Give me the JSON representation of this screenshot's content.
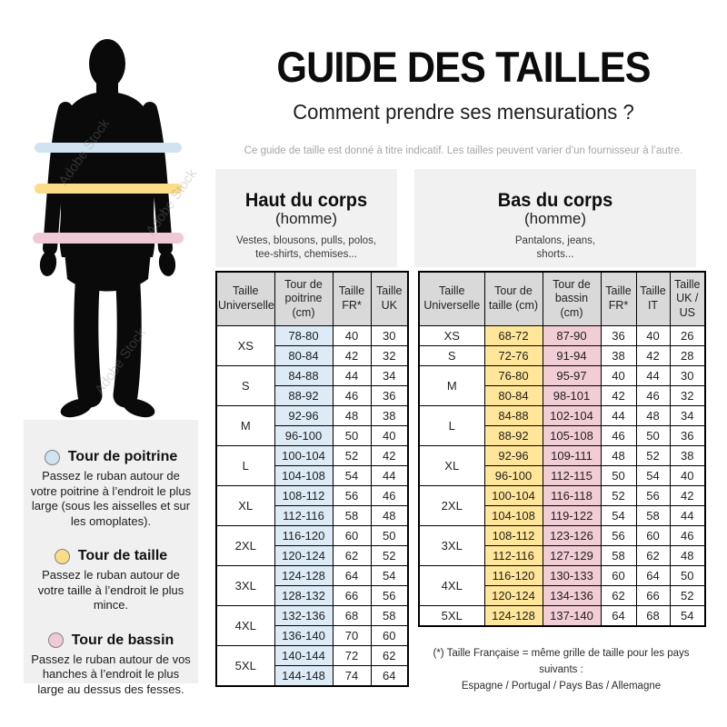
{
  "header": {
    "title": "GUIDE DES TAILLES",
    "subtitle": "Comment prendre ses mensurations ?",
    "disclaimer": "Ce guide de taille est donné à titre indicatif. Les tailles peuvent varier d’un fournisseur à l’autre."
  },
  "watermark": "Adobe Stock",
  "figure": {
    "bands": [
      {
        "name": "tour-de-poitrine",
        "color": "#cfe3f0"
      },
      {
        "name": "tour-de-taille",
        "color": "#fadd85"
      },
      {
        "name": "tour-de-bassin",
        "color": "#f0c9d6"
      }
    ]
  },
  "legend": {
    "items": [
      {
        "label": "Tour de poitrine",
        "color": "#cfe3f0",
        "text": "Passez le ruban autour de votre poitrine à l’endroit le plus large (sous les aisselles et sur les omoplates)."
      },
      {
        "label": "Tour de taille",
        "color": "#fadd85",
        "text": "Passez le ruban autour de votre taille à l’endroit le plus mince."
      },
      {
        "label": "Tour de bassin",
        "color": "#f0c9d6",
        "text": "Passez le ruban autour de vos hanches à l’endroit le plus large au dessus des fesses."
      }
    ]
  },
  "upper_table": {
    "intro": {
      "title": "Haut du corps",
      "subtitle": "(homme)",
      "line1": "Vestes, blousons, pulls, polos,",
      "line2": "tee-shirts, chemises..."
    },
    "columns": [
      "Taille Universelle",
      "Tour de poitrine (cm)",
      "Taille FR*",
      "Taille UK"
    ],
    "col_colors": [
      "#DDEBF7",
      null,
      null
    ],
    "sizes": [
      {
        "size": "XS",
        "rows": [
          [
            "78-80",
            "40",
            "30"
          ],
          [
            "80-84",
            "42",
            "32"
          ]
        ]
      },
      {
        "size": "S",
        "rows": [
          [
            "84-88",
            "44",
            "34"
          ],
          [
            "88-92",
            "46",
            "36"
          ]
        ]
      },
      {
        "size": "M",
        "rows": [
          [
            "92-96",
            "48",
            "38"
          ],
          [
            "96-100",
            "50",
            "40"
          ]
        ]
      },
      {
        "size": "L",
        "rows": [
          [
            "100-104",
            "52",
            "42"
          ],
          [
            "104-108",
            "54",
            "44"
          ]
        ]
      },
      {
        "size": "XL",
        "rows": [
          [
            "108-112",
            "56",
            "46"
          ],
          [
            "112-116",
            "58",
            "48"
          ]
        ]
      },
      {
        "size": "2XL",
        "rows": [
          [
            "116-120",
            "60",
            "50"
          ],
          [
            "120-124",
            "62",
            "52"
          ]
        ]
      },
      {
        "size": "3XL",
        "rows": [
          [
            "124-128",
            "64",
            "54"
          ],
          [
            "128-132",
            "66",
            "56"
          ]
        ]
      },
      {
        "size": "4XL",
        "rows": [
          [
            "132-136",
            "68",
            "58"
          ],
          [
            "136-140",
            "70",
            "60"
          ]
        ]
      },
      {
        "size": "5XL",
        "rows": [
          [
            "140-144",
            "72",
            "62"
          ],
          [
            "144-148",
            "74",
            "64"
          ]
        ]
      }
    ]
  },
  "lower_table": {
    "intro": {
      "title": "Bas du corps",
      "subtitle": "(homme)",
      "line1": "Pantalons, jeans,",
      "line2": "shorts..."
    },
    "columns": [
      "Taille Universelle",
      "Tour de taille (cm)",
      "Tour de bassin (cm)",
      "Taille FR*",
      "Taille IT",
      "Taille UK / US"
    ],
    "col_colors": [
      "#FFE699",
      "#F1CDD6",
      null,
      null,
      null
    ],
    "sizes": [
      {
        "size": "XS",
        "rows": [
          [
            "68-72",
            "87-90",
            "36",
            "40",
            "26"
          ]
        ]
      },
      {
        "size": "S",
        "rows": [
          [
            "72-76",
            "91-94",
            "38",
            "42",
            "28"
          ]
        ]
      },
      {
        "size": "M",
        "rows": [
          [
            "76-80",
            "95-97",
            "40",
            "44",
            "30"
          ],
          [
            "80-84",
            "98-101",
            "42",
            "46",
            "32"
          ]
        ]
      },
      {
        "size": "L",
        "rows": [
          [
            "84-88",
            "102-104",
            "44",
            "48",
            "34"
          ],
          [
            "88-92",
            "105-108",
            "46",
            "50",
            "36"
          ]
        ]
      },
      {
        "size": "XL",
        "rows": [
          [
            "92-96",
            "109-111",
            "48",
            "52",
            "38"
          ],
          [
            "96-100",
            "112-115",
            "50",
            "54",
            "40"
          ]
        ]
      },
      {
        "size": "2XL",
        "rows": [
          [
            "100-104",
            "116-118",
            "52",
            "56",
            "42"
          ],
          [
            "104-108",
            "119-122",
            "54",
            "58",
            "44"
          ]
        ]
      },
      {
        "size": "3XL",
        "rows": [
          [
            "108-112",
            "123-126",
            "56",
            "60",
            "46"
          ],
          [
            "112-116",
            "127-129",
            "58",
            "62",
            "48"
          ]
        ]
      },
      {
        "size": "4XL",
        "rows": [
          [
            "116-120",
            "130-133",
            "60",
            "64",
            "50"
          ],
          [
            "120-124",
            "134-136",
            "62",
            "66",
            "52"
          ]
        ]
      },
      {
        "size": "5XL",
        "rows": [
          [
            "124-128",
            "137-140",
            "64",
            "68",
            "54"
          ]
        ]
      }
    ]
  },
  "footnote": {
    "line1": "(*) Taille Française = même grille de taille pour les pays suivants :",
    "line2": "Espagne / Portugal / Pays Bas / Allemagne"
  }
}
